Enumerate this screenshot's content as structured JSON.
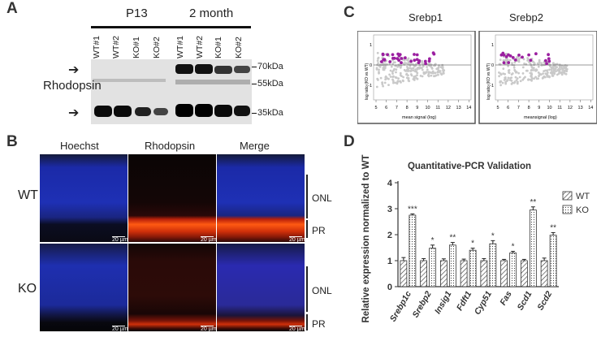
{
  "panels": {
    "a": {
      "letter": "A",
      "group1": "P13",
      "group2": "2 month",
      "lanes": [
        "WT#1",
        "WT#2",
        "KO#1",
        "KO#2",
        "WT#1",
        "WT#2",
        "KO#1",
        "KO#2"
      ],
      "protein": "Rhodopsin",
      "markers": [
        "70kDa",
        "55kDa",
        "35kDa"
      ]
    },
    "b": {
      "letter": "B",
      "columns": [
        "Hoechst",
        "Rhodopsin",
        "Merge"
      ],
      "rows": [
        "WT",
        "KO"
      ],
      "layers": [
        "ONL",
        "PR"
      ],
      "scale": "20 µm"
    },
    "c": {
      "letter": "C",
      "titles": [
        "Srebp1",
        "Srebp2"
      ],
      "ylabel": "log ratio (KO vs WT)",
      "xlabels": [
        "mean signal (log)",
        "meansignal (log)"
      ],
      "xticks": [
        "5",
        "6",
        "7",
        "8",
        "9",
        "10",
        "11",
        "12",
        "13",
        "14"
      ],
      "yticks": [
        "1",
        "0",
        "-1"
      ]
    },
    "d": {
      "letter": "D",
      "ylabel": "Relative expression normalized to WT"
    }
  },
  "colors": {
    "wt_fill": "hatched",
    "ko_fill": "dotted",
    "dot": "#9b1fa0"
  },
  "chart_data": {
    "type": "bar",
    "title": "Quantitative-PCR Validation",
    "ylabel": "Relative expression normalized to WT",
    "ylim": [
      0,
      4
    ],
    "yticks": [
      "0",
      "1",
      "2",
      "3",
      "4"
    ],
    "categories": [
      "Srebp1c",
      "Srebp2",
      "Insig1",
      "Fdft1",
      "Cyp51",
      "Fas",
      "Scd1",
      "Scd2"
    ],
    "series": [
      {
        "name": "WT",
        "values": [
          1,
          1,
          1,
          1,
          1,
          1,
          1,
          1
        ],
        "errors": [
          0.12,
          0.08,
          0.07,
          0.06,
          0.08,
          0.05,
          0.05,
          0.1
        ]
      },
      {
        "name": "KO",
        "values": [
          2.75,
          1.48,
          1.6,
          1.4,
          1.65,
          1.3,
          2.95,
          1.98
        ],
        "errors": [
          0.05,
          0.12,
          0.1,
          0.08,
          0.12,
          0.06,
          0.12,
          0.1
        ]
      }
    ],
    "significance": [
      "***",
      "*",
      "**",
      "*",
      "*",
      "*",
      "**",
      "**"
    ],
    "legend_position": "top-right"
  }
}
